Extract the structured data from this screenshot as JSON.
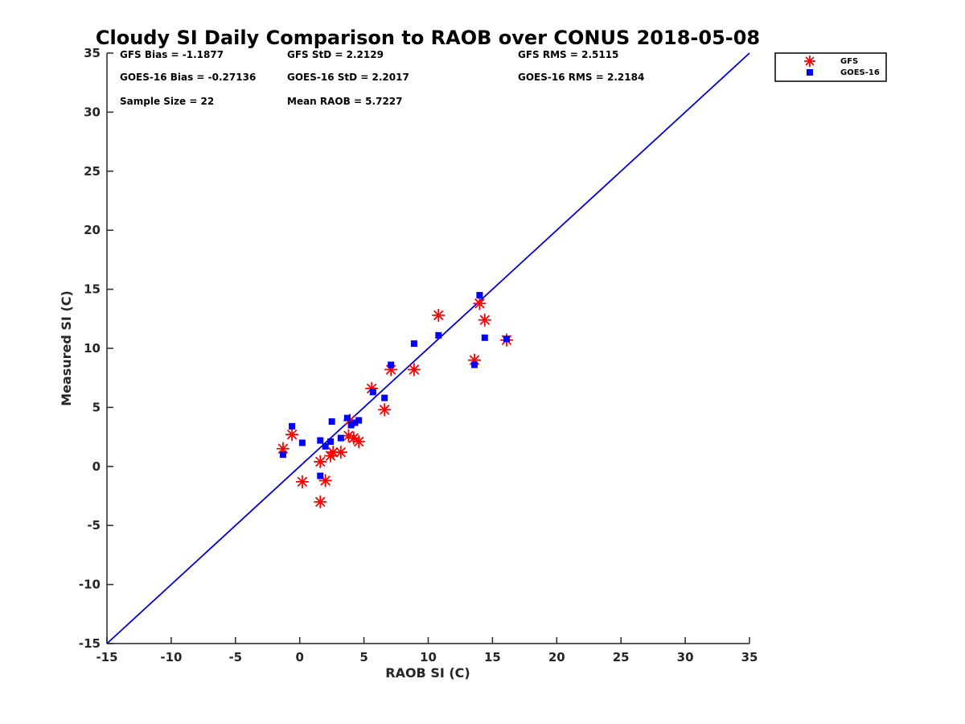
{
  "chart_data": {
    "type": "scatter",
    "title": "Cloudy SI Daily Comparison to RAOB over CONUS 2018-05-08",
    "xlabel": "RAOB SI (C)",
    "ylabel": "Measured SI (C)",
    "xlim": [
      -15,
      35
    ],
    "ylim": [
      -15,
      35
    ],
    "xticks": [
      -15,
      -10,
      -5,
      0,
      5,
      10,
      15,
      20,
      25,
      30,
      35
    ],
    "yticks": [
      -15,
      -10,
      -5,
      0,
      5,
      10,
      15,
      20,
      25,
      30,
      35
    ],
    "xtick_labels": [
      "-15",
      "-10",
      "-5",
      "0",
      "5",
      "10",
      "15",
      "20",
      "25",
      "30",
      "35"
    ],
    "ytick_labels": [
      "-15",
      "-10",
      "-5",
      "0",
      "5",
      "10",
      "15",
      "20",
      "25",
      "30",
      "35"
    ],
    "grid": false,
    "legend_position": "outside-top-right",
    "reference_line": {
      "type": "one-to-one",
      "color": "#0000dd"
    },
    "stats": [
      "GFS Bias = -1.1877",
      "GFS StD = 2.2129",
      "GFS RMS = 2.5115",
      "GOES-16 Bias = -0.27136",
      "GOES-16 StD = 2.2017",
      "GOES-16 RMS = 2.2184",
      "Sample Size = 22",
      "Mean RAOB = 5.7227"
    ],
    "series": [
      {
        "name": "GFS",
        "marker": "asterisk",
        "color": "#ff0000",
        "points": [
          [
            -1.3,
            1.5
          ],
          [
            -0.6,
            2.7
          ],
          [
            0.2,
            -1.3
          ],
          [
            1.6,
            -3.0
          ],
          [
            1.6,
            0.4
          ],
          [
            2.0,
            -1.2
          ],
          [
            2.4,
            0.9
          ],
          [
            2.6,
            1.2
          ],
          [
            3.2,
            1.2
          ],
          [
            3.8,
            2.6
          ],
          [
            4.2,
            2.4
          ],
          [
            4.6,
            2.1
          ],
          [
            5.6,
            6.6
          ],
          [
            6.6,
            4.8
          ],
          [
            7.1,
            8.2
          ],
          [
            8.9,
            8.2
          ],
          [
            10.8,
            12.8
          ],
          [
            13.6,
            9.0
          ],
          [
            14.0,
            13.8
          ],
          [
            14.4,
            12.4
          ],
          [
            16.1,
            10.7
          ],
          [
            3.9,
            3.9
          ]
        ]
      },
      {
        "name": "GOES-16",
        "marker": "square",
        "color": "#0000ff",
        "points": [
          [
            -1.3,
            1.0
          ],
          [
            -0.6,
            3.4
          ],
          [
            0.2,
            2.0
          ],
          [
            1.6,
            2.2
          ],
          [
            1.6,
            -0.8
          ],
          [
            2.0,
            1.7
          ],
          [
            2.4,
            2.1
          ],
          [
            2.5,
            3.8
          ],
          [
            3.2,
            2.4
          ],
          [
            3.7,
            4.1
          ],
          [
            4.0,
            3.5
          ],
          [
            4.3,
            3.7
          ],
          [
            4.6,
            3.9
          ],
          [
            5.7,
            6.3
          ],
          [
            6.6,
            5.8
          ],
          [
            7.1,
            8.6
          ],
          [
            8.9,
            10.4
          ],
          [
            10.8,
            11.1
          ],
          [
            13.6,
            8.6
          ],
          [
            14.0,
            14.5
          ],
          [
            14.4,
            10.9
          ],
          [
            16.1,
            10.8
          ]
        ]
      }
    ]
  },
  "legend": {
    "gfs_label": "GFS",
    "goes_label": "GOES-16"
  }
}
